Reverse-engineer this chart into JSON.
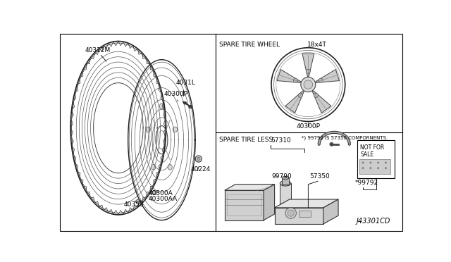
{
  "bg_color": "#ffffff",
  "diagram_id": "J43301CD",
  "lc": "#000000",
  "tc": "#000000",
  "fs": 6.5,
  "divx": 0.455,
  "divy": 0.5,
  "labels": {
    "spare_tire_wheel": "SPARE TIRE WHEEL",
    "18x4T": "18x4T",
    "spare_tire_less": "SPARE TIRE LESS",
    "57310": "57310",
    "99790": "99790",
    "57350": "57350",
    "99792": "*99792",
    "note": "*) 99792 IS 57350 COMPORNENTS.",
    "40312M": "40312M",
    "4031L": "4031L",
    "40300P": "40300P",
    "40300P2": "40300P",
    "40224": "40224",
    "40300A": "40300A",
    "40300AA": "40300AA",
    "40353": "40353"
  }
}
